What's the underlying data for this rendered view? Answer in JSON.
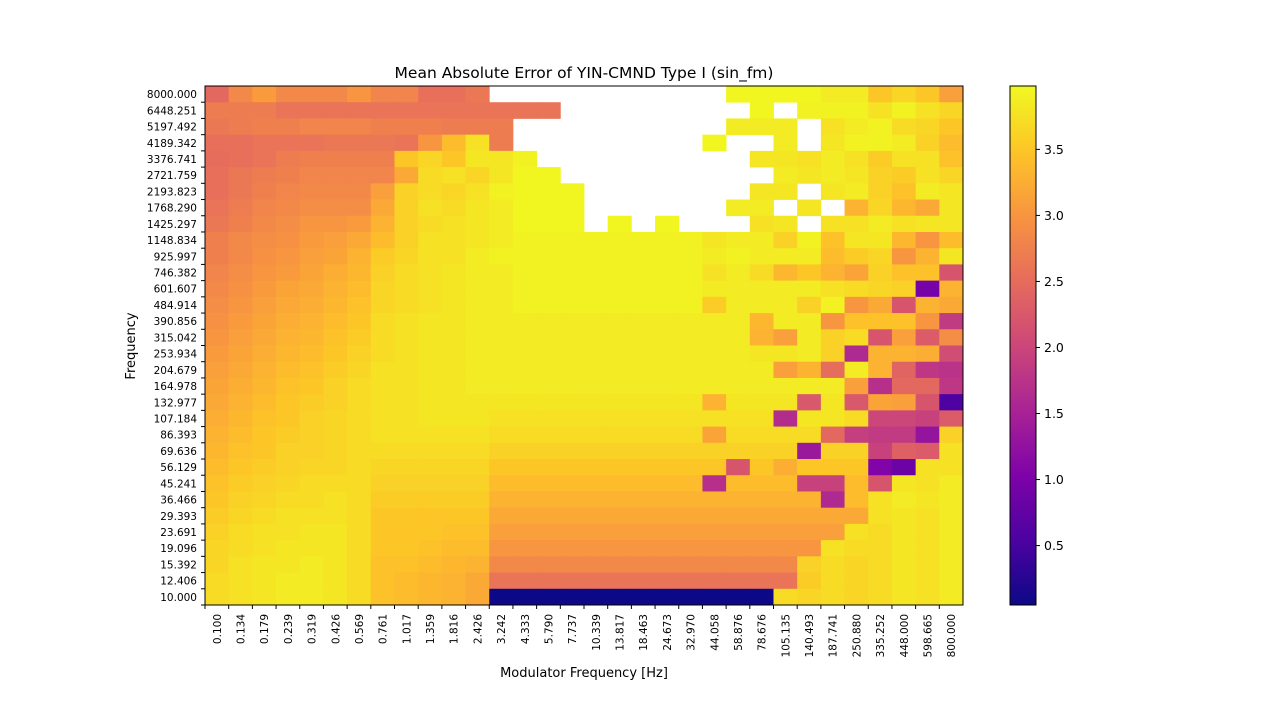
{
  "chart_data": {
    "type": "heatmap",
    "title": "Mean Absolute Error of YIN-CMND Type I  (sin_fm)",
    "xlabel": "Modulator Frequency [Hz]",
    "ylabel": "Frequency",
    "x_ticks": [
      "0.100",
      "0.134",
      "0.179",
      "0.239",
      "0.319",
      "0.426",
      "0.569",
      "0.761",
      "1.017",
      "1.359",
      "1.816",
      "2.426",
      "3.242",
      "4.333",
      "5.790",
      "7.737",
      "10.339",
      "13.817",
      "18.463",
      "24.673",
      "32.970",
      "44.058",
      "58.876",
      "78.676",
      "105.135",
      "140.493",
      "187.741",
      "250.880",
      "335.252",
      "448.000",
      "598.665",
      "800.000"
    ],
    "y_ticks": [
      "8000.000",
      "6448.251",
      "5197.492",
      "4189.342",
      "3376.741",
      "2721.759",
      "2193.823",
      "1768.290",
      "1425.297",
      "1148.834",
      "925.997",
      "746.382",
      "601.607",
      "484.914",
      "390.856",
      "315.042",
      "253.934",
      "204.679",
      "164.978",
      "132.977",
      "107.184",
      "86.393",
      "69.636",
      "56.129",
      "45.241",
      "36.466",
      "29.393",
      "23.691",
      "19.096",
      "15.392",
      "12.406",
      "10.000"
    ],
    "colorbar": {
      "colormap": "plasma",
      "min": 0.05,
      "max": 3.98,
      "ticks": [
        "0.5",
        "1.0",
        "1.5",
        "2.0",
        "2.5",
        "3.0",
        "3.5"
      ]
    },
    "missing": "blank cells (NaN) shown white",
    "values": [
      [
        2.45,
        2.85,
        3.05,
        2.85,
        2.85,
        2.85,
        3.0,
        2.8,
        2.8,
        2.55,
        2.55,
        2.65,
        null,
        null,
        null,
        null,
        null,
        null,
        null,
        null,
        null,
        null,
        3.95,
        3.95,
        3.95,
        3.95,
        3.85,
        3.85,
        3.5,
        3.65,
        3.5,
        3.1
      ],
      [
        2.7,
        2.7,
        2.7,
        2.6,
        2.6,
        2.6,
        2.6,
        2.6,
        2.6,
        2.6,
        2.6,
        2.6,
        2.6,
        2.6,
        2.6,
        null,
        null,
        null,
        null,
        null,
        null,
        null,
        null,
        3.95,
        null,
        3.9,
        3.9,
        3.9,
        3.75,
        3.9,
        3.75,
        3.65
      ],
      [
        2.65,
        2.7,
        2.75,
        2.75,
        2.8,
        2.8,
        2.8,
        2.75,
        2.75,
        2.75,
        2.7,
        2.7,
        2.7,
        null,
        null,
        null,
        null,
        null,
        null,
        null,
        null,
        null,
        3.85,
        3.85,
        3.85,
        null,
        3.75,
        3.85,
        3.9,
        3.7,
        3.65,
        3.5
      ],
      [
        2.55,
        2.55,
        2.6,
        2.6,
        2.6,
        2.65,
        2.65,
        2.65,
        2.6,
        3.0,
        3.4,
        3.75,
        2.7,
        null,
        null,
        null,
        null,
        null,
        null,
        null,
        null,
        3.95,
        null,
        null,
        3.85,
        null,
        3.8,
        3.9,
        3.9,
        3.85,
        3.6,
        3.4
      ],
      [
        2.5,
        2.55,
        2.6,
        2.7,
        2.75,
        2.75,
        2.75,
        2.75,
        3.5,
        3.65,
        3.5,
        3.8,
        3.8,
        3.9,
        null,
        null,
        null,
        null,
        null,
        null,
        null,
        null,
        null,
        3.8,
        3.8,
        3.75,
        3.85,
        3.75,
        3.55,
        3.75,
        3.75,
        3.45
      ],
      [
        2.55,
        2.65,
        2.7,
        2.75,
        2.8,
        2.8,
        2.8,
        2.8,
        3.2,
        3.7,
        3.75,
        3.65,
        3.8,
        3.95,
        3.95,
        null,
        null,
        null,
        null,
        null,
        null,
        null,
        null,
        null,
        3.85,
        3.8,
        3.85,
        3.8,
        3.6,
        3.55,
        3.75,
        3.65
      ],
      [
        2.55,
        2.65,
        2.75,
        2.8,
        2.85,
        2.85,
        2.85,
        3.1,
        3.6,
        3.7,
        3.65,
        3.75,
        3.9,
        3.95,
        3.95,
        3.95,
        null,
        null,
        null,
        null,
        null,
        null,
        null,
        3.8,
        3.8,
        null,
        3.8,
        3.85,
        3.6,
        3.45,
        3.85,
        3.8
      ],
      [
        2.6,
        2.7,
        2.8,
        2.85,
        2.9,
        2.9,
        2.9,
        3.2,
        3.6,
        3.75,
        3.7,
        3.8,
        3.85,
        3.95,
        3.95,
        3.95,
        null,
        null,
        null,
        null,
        null,
        null,
        3.85,
        3.85,
        null,
        3.8,
        null,
        3.3,
        3.65,
        3.35,
        3.2,
        3.8
      ],
      [
        2.65,
        2.75,
        2.85,
        2.9,
        3.0,
        3.0,
        3.05,
        3.3,
        3.6,
        3.7,
        3.75,
        3.8,
        3.85,
        3.95,
        3.95,
        3.95,
        null,
        3.95,
        null,
        3.95,
        null,
        null,
        null,
        3.75,
        3.8,
        null,
        3.75,
        3.75,
        3.85,
        3.75,
        3.8,
        3.8
      ],
      [
        2.75,
        2.85,
        2.9,
        2.95,
        3.05,
        3.1,
        3.2,
        3.4,
        3.6,
        3.75,
        3.75,
        3.8,
        3.85,
        3.9,
        3.9,
        3.9,
        3.9,
        3.9,
        3.9,
        3.9,
        3.9,
        3.8,
        3.85,
        3.85,
        3.6,
        3.9,
        3.45,
        3.8,
        3.8,
        3.35,
        3.0,
        3.4
      ],
      [
        2.75,
        2.85,
        2.95,
        3.0,
        3.1,
        3.15,
        3.3,
        3.55,
        3.65,
        3.75,
        3.75,
        3.85,
        3.9,
        3.9,
        3.9,
        3.9,
        3.9,
        3.9,
        3.9,
        3.9,
        3.9,
        3.85,
        3.9,
        3.85,
        3.85,
        3.85,
        3.4,
        3.55,
        3.65,
        3.0,
        3.3,
        3.8
      ],
      [
        2.8,
        2.9,
        3.0,
        3.05,
        3.15,
        3.25,
        3.35,
        3.6,
        3.7,
        3.75,
        3.8,
        3.85,
        3.85,
        3.9,
        3.9,
        3.9,
        3.9,
        3.9,
        3.9,
        3.9,
        3.9,
        3.75,
        3.85,
        3.7,
        3.35,
        3.5,
        3.3,
        3.15,
        3.6,
        3.45,
        3.45,
        2.2
      ],
      [
        2.85,
        2.95,
        3.05,
        3.15,
        3.2,
        3.3,
        3.4,
        3.65,
        3.7,
        3.75,
        3.8,
        3.85,
        3.85,
        3.9,
        3.9,
        3.9,
        3.9,
        3.9,
        3.9,
        3.9,
        3.9,
        3.85,
        3.85,
        3.85,
        3.85,
        3.85,
        3.75,
        3.7,
        3.65,
        3.6,
        0.95,
        3.3
      ],
      [
        2.9,
        3.0,
        3.1,
        3.2,
        3.25,
        3.35,
        3.45,
        3.65,
        3.7,
        3.75,
        3.8,
        3.85,
        3.85,
        3.9,
        3.9,
        3.9,
        3.9,
        3.9,
        3.9,
        3.9,
        3.9,
        3.55,
        3.85,
        3.85,
        3.85,
        3.6,
        3.9,
        3.0,
        3.2,
        2.2,
        3.3,
        3.2
      ],
      [
        2.95,
        3.05,
        3.15,
        3.25,
        3.3,
        3.4,
        3.5,
        3.7,
        3.75,
        3.8,
        3.8,
        3.85,
        3.85,
        3.85,
        3.85,
        3.85,
        3.85,
        3.85,
        3.85,
        3.85,
        3.85,
        3.85,
        3.85,
        3.35,
        3.85,
        3.85,
        3.0,
        3.45,
        3.45,
        3.45,
        3.0,
        1.85
      ],
      [
        3.0,
        3.1,
        3.2,
        3.3,
        3.35,
        3.45,
        3.55,
        3.7,
        3.75,
        3.8,
        3.8,
        3.85,
        3.85,
        3.85,
        3.85,
        3.85,
        3.85,
        3.85,
        3.85,
        3.85,
        3.85,
        3.85,
        3.85,
        3.3,
        3.1,
        3.85,
        3.6,
        3.7,
        2.2,
        3.1,
        2.3,
        2.9
      ],
      [
        3.05,
        3.15,
        3.25,
        3.35,
        3.4,
        3.5,
        3.6,
        3.7,
        3.75,
        3.8,
        3.8,
        3.85,
        3.85,
        3.85,
        3.85,
        3.85,
        3.85,
        3.85,
        3.85,
        3.85,
        3.85,
        3.85,
        3.85,
        3.8,
        3.8,
        3.85,
        3.6,
        1.6,
        3.3,
        3.3,
        3.25,
        2.1
      ],
      [
        3.1,
        3.2,
        3.3,
        3.4,
        3.45,
        3.55,
        3.65,
        3.75,
        3.75,
        3.8,
        3.8,
        3.85,
        3.85,
        3.85,
        3.85,
        3.85,
        3.85,
        3.85,
        3.85,
        3.85,
        3.85,
        3.85,
        3.85,
        3.85,
        3.1,
        3.3,
        2.5,
        3.85,
        3.3,
        2.4,
        1.8,
        1.75
      ],
      [
        3.15,
        3.25,
        3.35,
        3.45,
        3.5,
        3.6,
        3.7,
        3.75,
        3.75,
        3.8,
        3.8,
        3.85,
        3.85,
        3.85,
        3.85,
        3.85,
        3.85,
        3.85,
        3.85,
        3.85,
        3.85,
        3.85,
        3.85,
        3.85,
        3.85,
        3.85,
        3.85,
        3.1,
        1.7,
        2.45,
        2.45,
        1.8
      ],
      [
        3.2,
        3.3,
        3.4,
        3.5,
        3.55,
        3.6,
        3.7,
        3.75,
        3.75,
        3.8,
        3.8,
        3.8,
        3.8,
        3.8,
        3.8,
        3.8,
        3.8,
        3.8,
        3.8,
        3.8,
        3.8,
        3.3,
        3.8,
        3.8,
        3.8,
        2.25,
        3.8,
        2.25,
        3.15,
        3.1,
        2.2,
        0.55
      ],
      [
        3.25,
        3.35,
        3.45,
        3.5,
        3.6,
        3.65,
        3.7,
        3.75,
        3.75,
        3.8,
        3.8,
        3.8,
        3.75,
        3.75,
        3.75,
        3.75,
        3.75,
        3.75,
        3.75,
        3.75,
        3.75,
        3.75,
        3.75,
        3.75,
        1.65,
        3.8,
        3.8,
        3.7,
        2.0,
        2.0,
        1.95,
        2.3
      ],
      [
        3.3,
        3.4,
        3.5,
        3.55,
        3.6,
        3.65,
        3.7,
        3.75,
        3.75,
        3.75,
        3.75,
        3.75,
        3.7,
        3.7,
        3.7,
        3.7,
        3.7,
        3.7,
        3.7,
        3.7,
        3.7,
        3.15,
        3.7,
        3.7,
        3.7,
        3.7,
        2.45,
        1.9,
        1.85,
        1.85,
        1.3,
        3.6
      ],
      [
        3.35,
        3.45,
        3.5,
        3.6,
        3.6,
        3.65,
        3.7,
        3.7,
        3.7,
        3.7,
        3.7,
        3.7,
        3.6,
        3.6,
        3.6,
        3.6,
        3.6,
        3.6,
        3.6,
        3.6,
        3.6,
        3.6,
        3.6,
        3.6,
        3.6,
        1.35,
        3.6,
        3.6,
        1.95,
        2.35,
        2.3,
        3.75
      ],
      [
        3.4,
        3.5,
        3.55,
        3.6,
        3.65,
        3.65,
        3.7,
        3.65,
        3.65,
        3.65,
        3.65,
        3.65,
        3.5,
        3.5,
        3.5,
        3.5,
        3.5,
        3.5,
        3.5,
        3.5,
        3.5,
        3.5,
        2.2,
        3.5,
        3.25,
        3.5,
        3.5,
        3.5,
        1.05,
        0.85,
        3.75,
        3.75
      ],
      [
        3.45,
        3.55,
        3.6,
        3.65,
        3.7,
        3.7,
        3.7,
        3.6,
        3.6,
        3.6,
        3.6,
        3.6,
        3.4,
        3.4,
        3.4,
        3.4,
        3.4,
        3.4,
        3.4,
        3.4,
        3.4,
        1.7,
        3.4,
        3.4,
        3.4,
        1.95,
        1.95,
        3.4,
        2.2,
        3.8,
        3.75,
        3.85
      ],
      [
        3.5,
        3.6,
        3.65,
        3.7,
        3.7,
        3.75,
        3.7,
        3.55,
        3.55,
        3.55,
        3.55,
        3.55,
        3.3,
        3.3,
        3.3,
        3.3,
        3.3,
        3.3,
        3.3,
        3.3,
        3.3,
        3.3,
        3.3,
        3.3,
        3.3,
        3.3,
        1.6,
        3.4,
        3.75,
        3.85,
        3.8,
        3.85
      ],
      [
        3.55,
        3.65,
        3.7,
        3.75,
        3.75,
        3.75,
        3.7,
        3.5,
        3.5,
        3.5,
        3.5,
        3.5,
        3.2,
        3.2,
        3.2,
        3.2,
        3.2,
        3.2,
        3.2,
        3.2,
        3.2,
        3.2,
        3.2,
        3.2,
        3.2,
        3.2,
        3.2,
        3.2,
        3.75,
        3.8,
        3.75,
        3.85
      ],
      [
        3.6,
        3.7,
        3.75,
        3.75,
        3.8,
        3.8,
        3.7,
        3.5,
        3.5,
        3.5,
        3.45,
        3.45,
        3.1,
        3.1,
        3.1,
        3.1,
        3.1,
        3.1,
        3.1,
        3.1,
        3.1,
        3.1,
        3.1,
        3.1,
        3.1,
        3.1,
        3.1,
        3.75,
        3.7,
        3.8,
        3.75,
        3.85
      ],
      [
        3.65,
        3.7,
        3.75,
        3.8,
        3.8,
        3.8,
        3.7,
        3.5,
        3.5,
        3.45,
        3.4,
        3.4,
        3.0,
        3.0,
        3.0,
        3.0,
        3.0,
        3.0,
        3.0,
        3.0,
        3.0,
        3.0,
        3.0,
        3.0,
        3.0,
        3.0,
        3.75,
        3.7,
        3.7,
        3.8,
        3.75,
        3.85
      ],
      [
        3.65,
        3.75,
        3.8,
        3.8,
        3.85,
        3.8,
        3.7,
        3.45,
        3.45,
        3.4,
        3.35,
        3.3,
        2.85,
        2.85,
        2.85,
        2.85,
        2.85,
        2.85,
        2.85,
        2.85,
        2.85,
        2.85,
        2.85,
        2.85,
        2.85,
        3.6,
        3.7,
        3.65,
        3.7,
        3.8,
        3.75,
        3.85
      ],
      [
        3.7,
        3.75,
        3.8,
        3.85,
        3.85,
        3.8,
        3.7,
        3.45,
        3.4,
        3.35,
        3.3,
        3.2,
        2.6,
        2.6,
        2.6,
        2.6,
        2.6,
        2.6,
        2.6,
        2.6,
        2.6,
        2.6,
        2.6,
        2.6,
        2.6,
        3.55,
        3.7,
        3.65,
        3.7,
        3.8,
        3.75,
        3.85
      ],
      [
        3.7,
        3.75,
        3.8,
        3.85,
        3.85,
        3.8,
        3.7,
        3.45,
        3.4,
        3.35,
        3.3,
        3.2,
        0.05,
        0.05,
        0.05,
        0.05,
        0.05,
        0.05,
        0.05,
        0.05,
        0.05,
        0.05,
        0.05,
        0.05,
        3.7,
        3.65,
        3.7,
        3.65,
        3.7,
        3.8,
        3.75,
        3.85
      ]
    ]
  }
}
